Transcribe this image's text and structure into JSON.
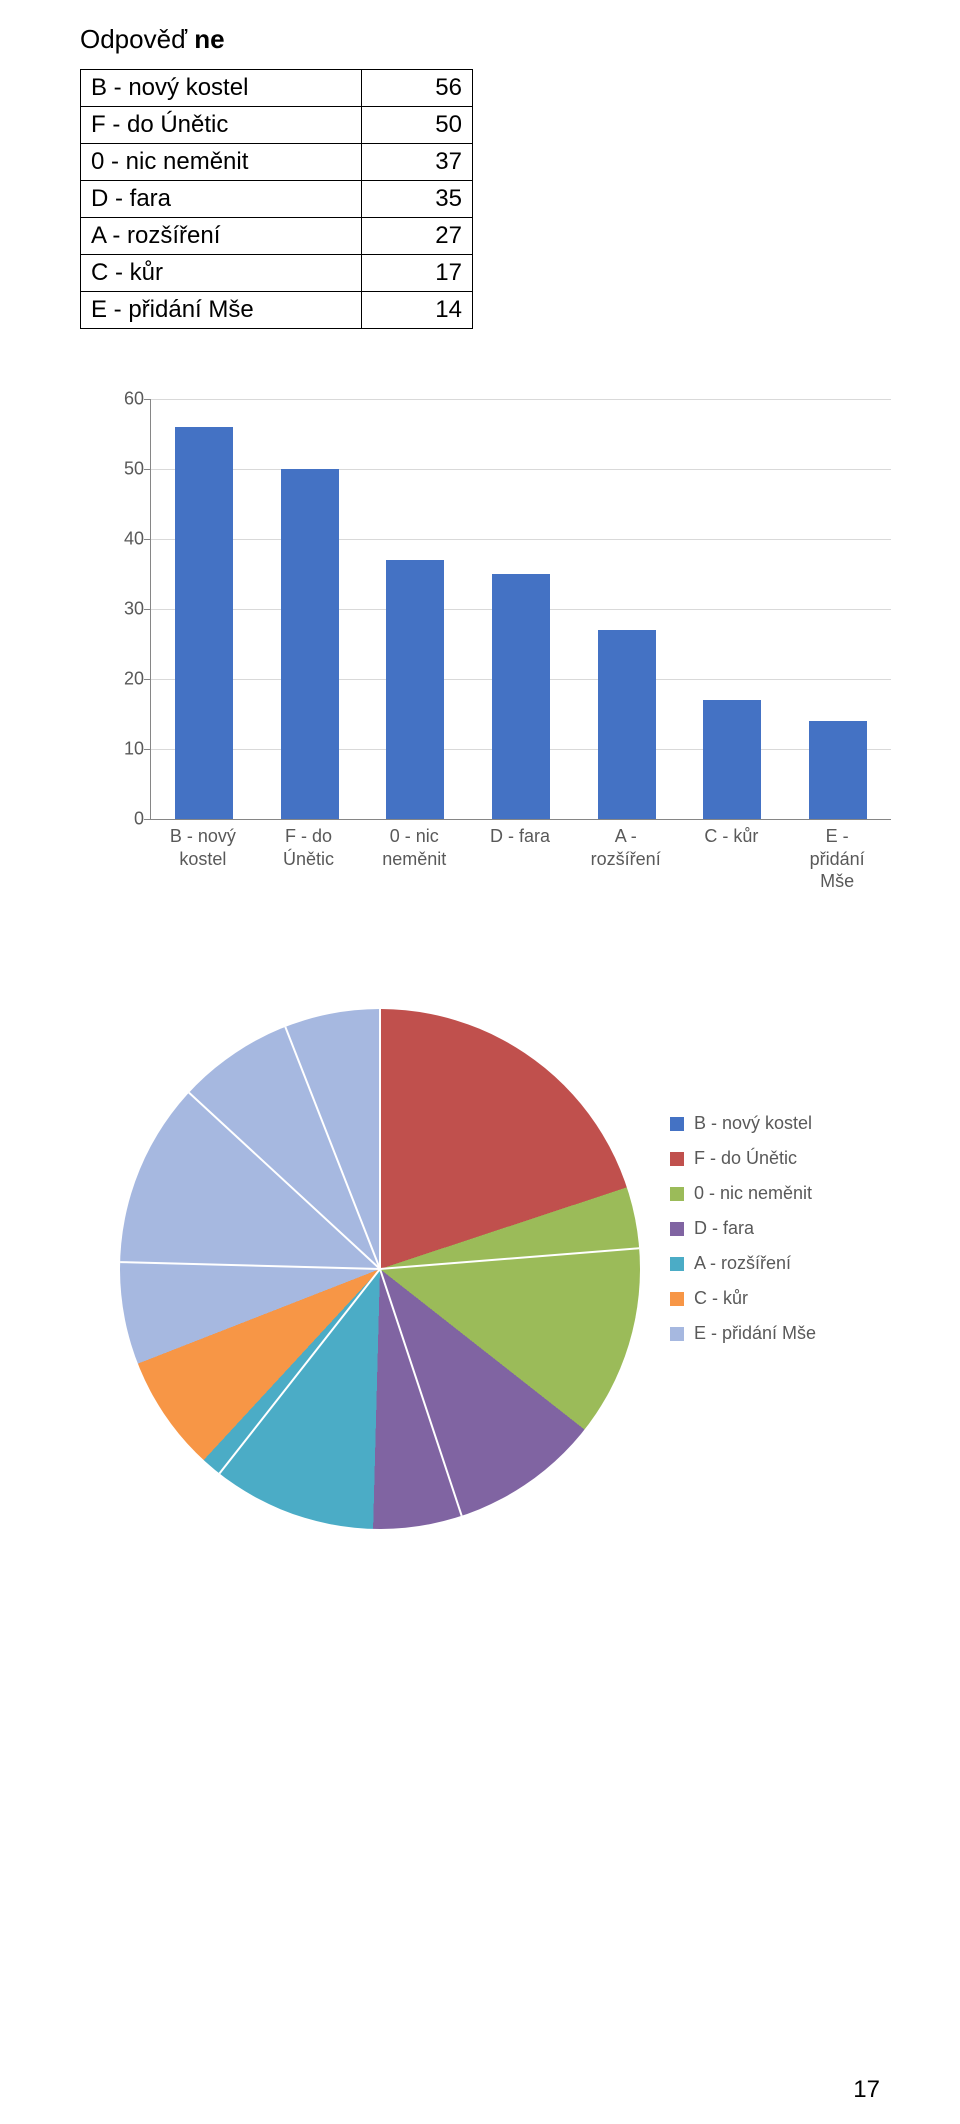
{
  "title": {
    "prefix": "Odpověď ",
    "emph": "ne"
  },
  "table": {
    "rows": [
      {
        "label": "B - nový kostel",
        "value": 56
      },
      {
        "label": "F - do Únětic",
        "value": 50
      },
      {
        "label": "0 - nic neměnit",
        "value": 37
      },
      {
        "label": "D - fara",
        "value": 35
      },
      {
        "label": "A - rozšíření",
        "value": 27
      },
      {
        "label": "C - kůr",
        "value": 17
      },
      {
        "label": "E - přidání Mše",
        "value": 14
      }
    ]
  },
  "bar_chart": {
    "type": "bar",
    "categories": [
      "B - nový\nkostel",
      "F - do\nÚnětic",
      "0 - nic\nneměnit",
      "D - fara",
      "A -\nrozšíření",
      "C - kůr",
      "E -\npřidání\nMše"
    ],
    "values": [
      56,
      50,
      37,
      35,
      27,
      17,
      14
    ],
    "bar_color": "#4472c4",
    "ylim": [
      0,
      60
    ],
    "ytick_step": 10,
    "bar_width_ratio": 0.55,
    "grid_color": "#d9d9d9",
    "axis_color": "#868686",
    "label_color": "#595959",
    "label_fontsize": 18
  },
  "pie_chart": {
    "type": "pie",
    "start_angle_deg": -90,
    "slices": [
      {
        "label": "B - nový kostel",
        "value": 56,
        "color": "#4472c4"
      },
      {
        "label": "F - do Únětic",
        "value": 50,
        "color": "#c0504d"
      },
      {
        "label": "0 - nic neměnit",
        "value": 37,
        "color": "#9bbb59"
      },
      {
        "label": "D - fara",
        "value": 35,
        "color": "#8064a2"
      },
      {
        "label": "A - rozšíření",
        "value": 27,
        "color": "#4bacc6"
      },
      {
        "label": "C - kůr",
        "value": 17,
        "color": "#f79646"
      },
      {
        "label": "E - přidání Mše",
        "value": 14,
        "color": "#a6b8e0"
      }
    ],
    "slice_border_color": "#ffffff",
    "slice_border_width": 2
  },
  "page_number": "17"
}
